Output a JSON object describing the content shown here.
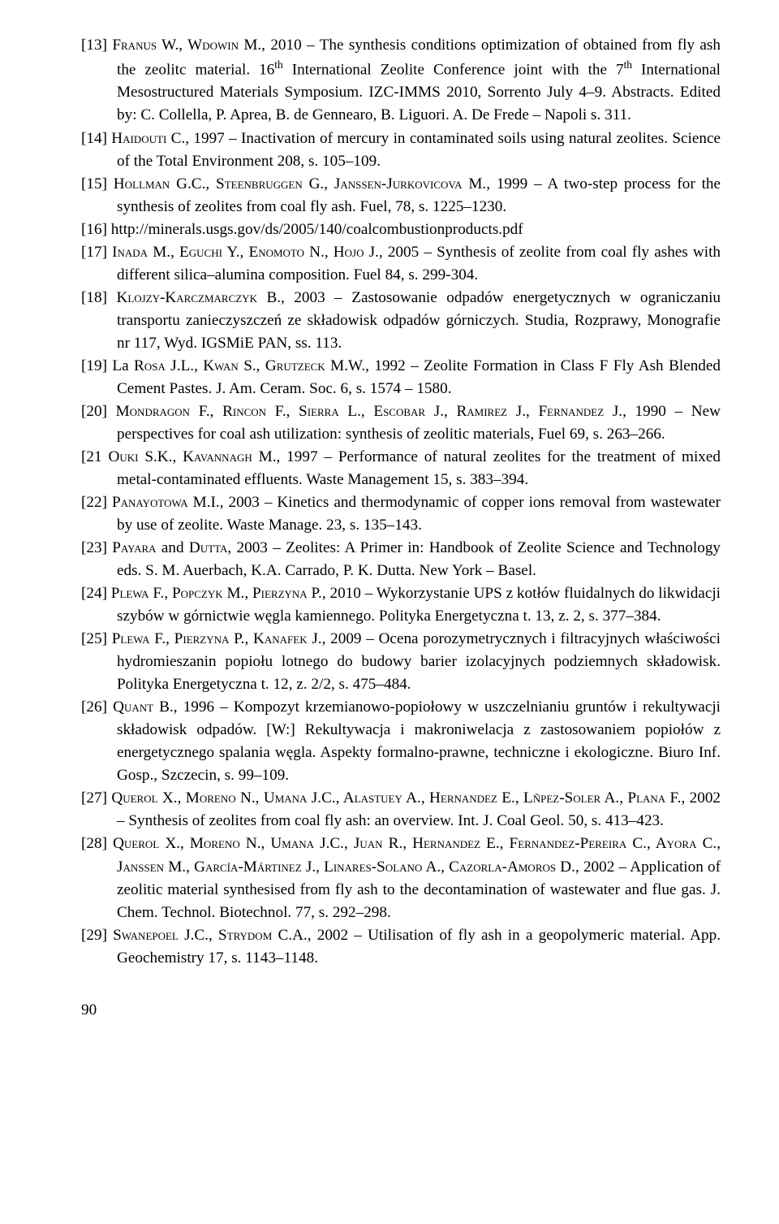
{
  "refs": [
    {
      "n": "[13]",
      "html": "F<span class='sc'>ranus</span> W., W<span class='sc'>dowin</span> M., 2010 – The synthesis conditions optimization of obtained from fly ash the zeolitc material. 16<sup>th</sup> International Zeolite Conference joint with the 7<sup>th</sup> International Mesostructured Materials Symposium. IZC-IMMS 2010, Sorrento July 4–9. Abstracts. Edited by: C. Collella, P. Aprea, B. de Gennearo, B. Liguori. A. De Frede – Napoli s. 311."
    },
    {
      "n": "[14]",
      "html": "H<span class='sc'>aidouti</span> C., 1997 – Inactivation of mercury in contaminated soils using natural zeolites. Science of the Total Environment 208, s. 105–109."
    },
    {
      "n": "[15]",
      "html": "H<span class='sc'>ollman</span> G.C., S<span class='sc'>teenbruggen</span> G., J<span class='sc'>anssen</span>-J<span class='sc'>urkovicova</span> M., 1999 – A two-step process for the synthesis of zeolites from coal fly ash. Fuel, 78, s. 1225–1230."
    },
    {
      "n": "[16]",
      "html": "http://minerals.usgs.gov/ds/2005/140/coalcombustionproducts.pdf"
    },
    {
      "n": "[17]",
      "html": "I<span class='sc'>nada</span> M., E<span class='sc'>guchi</span> Y., E<span class='sc'>nomoto</span> N., H<span class='sc'>ojo</span> J., 2005 – Synthesis of zeolite from coal fly ashes with different silica–alumina composition. Fuel 84, s. 299-304."
    },
    {
      "n": "[18]",
      "html": "K<span class='sc'>lojzy</span>-K<span class='sc'>arczmarczyk</span> B., 2003 – Zastosowanie odpadów energetycznych w ograniczaniu transportu zanieczyszczeń ze składowisk odpadów górniczych. Studia, Rozprawy, Monografie nr 117, Wyd. IGSMiE PAN, ss. 113."
    },
    {
      "n": "[19]",
      "html": "La R<span class='sc'>osa</span> J.L., K<span class='sc'>wan</span> S., G<span class='sc'>rutzeck</span> M.W., 1992 – Zeolite Formation in Class F Fly Ash Blended Cement Pastes. J. Am. Ceram. Soc. 6, s. 1574 – 1580."
    },
    {
      "n": "[20]",
      "html": "M<span class='sc'>ondragon</span> F., R<span class='sc'>incon</span> F., S<span class='sc'>ierra</span> L., E<span class='sc'>scobar</span> J., R<span class='sc'>amirez</span> J., F<span class='sc'>ernandez</span> J., 1990 – New perspectives for coal ash utilization: synthesis of zeolitic materials, Fuel 69, s. 263–266."
    },
    {
      "n": "[21",
      "html": "O<span class='sc'>uki</span> S.K., K<span class='sc'>avannagh</span> M., 1997 – Performance of natural zeolites for the treatment of mixed metal-contaminated effluents. Waste Management 15, s. 383–394."
    },
    {
      "n": "[22]",
      "html": "P<span class='sc'>anayotowa</span> M.I., 2003 – Kinetics and thermodynamic of copper ions removal from wastewater by use of zeolite. Waste Manage. 23, s. 135–143."
    },
    {
      "n": "[23]",
      "html": "P<span class='sc'>ayara</span> and D<span class='sc'>utta</span>, 2003 – Zeolites: A Primer in: Handbook of Zeolite Science and Technology eds. S. M. Auerbach, K.A. Carrado, P. K. Dutta. New York – Basel."
    },
    {
      "n": "[24]",
      "html": "P<span class='sc'>lewa</span> F., P<span class='sc'>opczyk</span> M., P<span class='sc'>ierzyna</span> P., 2010 – Wykorzystanie UPS z kotłów fluidalnych do likwidacji szybów w górnictwie węgla kamiennego. Polityka Energetyczna t. 13, z. 2, s.&nbsp;377–384."
    },
    {
      "n": "[25]",
      "html": "P<span class='sc'>lewa</span> F., P<span class='sc'>ierzyna</span> P., K<span class='sc'>anafek</span> J., 2009 – Ocena porozymetrycznych i filtracyjnych właściwości hydromieszanin popiołu lotnego do budowy barier izolacyjnych podziemnych składowisk. Polityka Energetyczna t. 12, z. 2/2, s. 475–484."
    },
    {
      "n": "[26]",
      "html": "Q<span class='sc'>uant</span> B., 1996 – Kompozyt krzemianowo-popiołowy w uszczelnianiu gruntów i rekultywacji składowisk odpadów. [W:] Rekultywacja i makroniwelacja z zastosowaniem popiołów z energetycznego spalania węgla. Aspekty formalno-prawne, techniczne i ekologiczne. Biuro Inf. Gosp., Szczecin, s. 99–109."
    },
    {
      "n": "[27]",
      "html": "Q<span class='sc'>uerol</span> X., M<span class='sc'>oreno</span> N., U<span class='sc'>mana</span> J.C., A<span class='sc'>lastuey</span> A., H<span class='sc'>ernandez</span> E., L<span class='sc'>ñpez</span>-S<span class='sc'>oler</span> A., P<span class='sc'>lana</span> F., 2002 – Synthesis of zeolites from coal fly ash: an overview. Int. J. Coal Geol. 50, s.&nbsp;413–423."
    },
    {
      "n": "[28]",
      "html": "Q<span class='sc'>uerol</span> X., M<span class='sc'>oreno</span> N., U<span class='sc'>mana</span> J.C., J<span class='sc'>uan</span> R., H<span class='sc'>ernandez</span> E., F<span class='sc'>ernandez</span>-P<span class='sc'>ereira</span> C., A<span class='sc'>yora</span> C., J<span class='sc'>anssen</span> M., G<span class='sc'>arcía</span>-M<span class='sc'>ártinez</span> J., L<span class='sc'>inares</span>-S<span class='sc'>olano</span> A., C<span class='sc'>azorla</span>-A<span class='sc'>moros</span> D., 2002 – Application of zeolitic material synthesised from fly ash to the decontamination of wastewater and flue gas. J. Chem. Technol. Biotechnol. 77, s. 292–298."
    },
    {
      "n": "[29]",
      "html": "S<span class='sc'>wanepoel</span> J.C., S<span class='sc'>trydom</span> C.A., 2002 – Utilisation of fly ash in a geopolymeric material. App. Geochemistry 17, s. 1143–1148."
    }
  ],
  "pagenum": "90"
}
